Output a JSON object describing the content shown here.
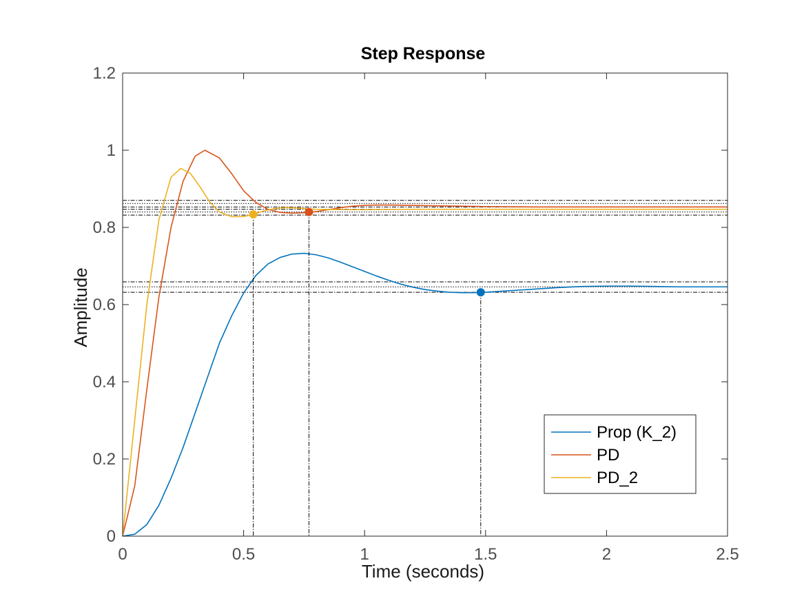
{
  "chart_data": {
    "type": "line",
    "title": "Step Response",
    "xlabel": "Time (seconds)",
    "ylabel": "Amplitude",
    "xlim": [
      0,
      2.5
    ],
    "ylim": [
      0,
      1.2
    ],
    "xticks": [
      0,
      0.5,
      1,
      1.5,
      2,
      2.5
    ],
    "xtick_labels": [
      "0",
      "0.5",
      "1",
      "1.5",
      "2",
      "2.5"
    ],
    "yticks": [
      0,
      0.2,
      0.4,
      0.6,
      0.8,
      1.0,
      1.2
    ],
    "ytick_labels": [
      "0",
      "0.2",
      "0.4",
      "0.6",
      "0.8",
      "1",
      "1.2"
    ],
    "grid": false,
    "legend_position": "bottom-right",
    "series": [
      {
        "name": "Prop (K_2)",
        "color": "#0072BD",
        "final_value": 0.646,
        "x": [
          0,
          0.05,
          0.1,
          0.15,
          0.2,
          0.25,
          0.3,
          0.35,
          0.4,
          0.45,
          0.5,
          0.55,
          0.6,
          0.65,
          0.7,
          0.75,
          0.8,
          0.85,
          0.9,
          0.95,
          1.0,
          1.05,
          1.1,
          1.15,
          1.2,
          1.25,
          1.3,
          1.35,
          1.4,
          1.45,
          1.5,
          1.55,
          1.6,
          1.7,
          1.8,
          1.9,
          2.0,
          2.1,
          2.2,
          2.3,
          2.4,
          2.5
        ],
        "y": [
          0,
          0.005,
          0.03,
          0.08,
          0.15,
          0.23,
          0.32,
          0.41,
          0.5,
          0.57,
          0.63,
          0.675,
          0.705,
          0.722,
          0.731,
          0.733,
          0.729,
          0.721,
          0.71,
          0.698,
          0.686,
          0.674,
          0.663,
          0.653,
          0.645,
          0.639,
          0.635,
          0.632,
          0.631,
          0.631,
          0.632,
          0.634,
          0.636,
          0.64,
          0.644,
          0.647,
          0.648,
          0.648,
          0.647,
          0.646,
          0.646,
          0.646
        ]
      },
      {
        "name": "PD",
        "color": "#D95319",
        "final_value": 0.853,
        "x": [
          0,
          0.05,
          0.1,
          0.15,
          0.2,
          0.25,
          0.3,
          0.34,
          0.4,
          0.45,
          0.5,
          0.55,
          0.6,
          0.65,
          0.7,
          0.75,
          0.8,
          0.85,
          0.9,
          0.95,
          1.0,
          1.05,
          1.1,
          1.2,
          1.3,
          1.4,
          1.5,
          1.7,
          1.9,
          2.1,
          2.3,
          2.5
        ],
        "y": [
          0,
          0.13,
          0.38,
          0.62,
          0.8,
          0.92,
          0.985,
          1.0,
          0.98,
          0.94,
          0.895,
          0.865,
          0.847,
          0.839,
          0.837,
          0.838,
          0.841,
          0.846,
          0.851,
          0.855,
          0.857,
          0.858,
          0.858,
          0.857,
          0.856,
          0.855,
          0.854,
          0.853,
          0.853,
          0.853,
          0.853,
          0.853
        ]
      },
      {
        "name": "PD_2",
        "color": "#EDB120",
        "final_value": 0.847,
        "x": [
          0,
          0.05,
          0.1,
          0.15,
          0.2,
          0.24,
          0.28,
          0.32,
          0.36,
          0.4,
          0.45,
          0.5,
          0.54,
          0.58,
          0.62,
          0.66,
          0.7,
          0.75,
          0.8,
          0.9,
          1.0,
          1.2,
          1.4,
          1.6,
          1.8,
          2.0,
          2.2,
          2.5
        ],
        "y": [
          0,
          0.3,
          0.6,
          0.82,
          0.93,
          0.953,
          0.94,
          0.905,
          0.866,
          0.84,
          0.828,
          0.828,
          0.834,
          0.842,
          0.848,
          0.851,
          0.851,
          0.849,
          0.847,
          0.846,
          0.846,
          0.847,
          0.847,
          0.847,
          0.847,
          0.847,
          0.847,
          0.847
        ]
      }
    ],
    "settling_markers": [
      {
        "series": "Prop (K_2)",
        "time": 1.48,
        "value": 0.632,
        "color": "#0072BD"
      },
      {
        "series": "PD",
        "time": 0.77,
        "value": 0.84,
        "color": "#D95319"
      },
      {
        "series": "PD_2",
        "time": 0.54,
        "value": 0.834,
        "color": "#EDB120"
      }
    ],
    "reference_lines": [
      0.632,
      0.646,
      0.659,
      0.832,
      0.84,
      0.847,
      0.853,
      0.862,
      0.87
    ]
  }
}
